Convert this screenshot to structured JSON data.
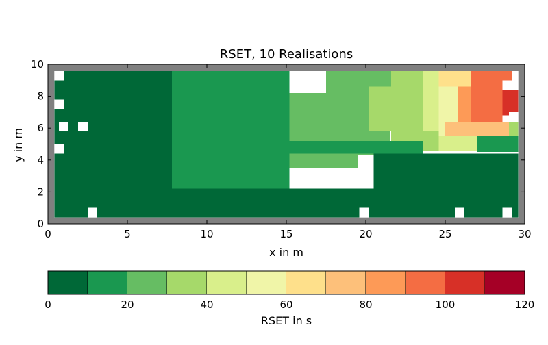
{
  "chart_data": {
    "type": "heatmap",
    "title": "RSET, 10 Realisations",
    "xlabel": "x in m",
    "ylabel": "y in m",
    "xlim": [
      0,
      30
    ],
    "ylim": [
      0,
      10
    ],
    "xticks": [
      "0",
      "5",
      "10",
      "15",
      "20",
      "25",
      "30"
    ],
    "yticks": [
      "0",
      "2",
      "4",
      "6",
      "8",
      "10"
    ],
    "cell_size_m": [
      0.6,
      0.6
    ],
    "grid_origin_m": [
      0.4,
      0.4
    ],
    "walls_color": "#808080",
    "missing_color": "#ffffff",
    "zones": [
      {
        "x": [
          0.4,
          7.8
        ],
        "y": [
          0.4,
          9.6
        ],
        "value": 5
      },
      {
        "x": [
          7.8,
          15.2
        ],
        "y": [
          2.2,
          9.6
        ],
        "value": 15
      },
      {
        "x": [
          15.2,
          19.5
        ],
        "y": [
          3.5,
          8.2
        ],
        "value": 25
      },
      {
        "x": [
          19.5,
          21.5
        ],
        "y": [
          4.3,
          8.7
        ],
        "value": 25
      },
      {
        "x": [
          17.5,
          21.6
        ],
        "y": [
          8.2,
          9.6
        ],
        "value": 25
      },
      {
        "x": [
          21.6,
          23.6
        ],
        "y": [
          4.6,
          9.6
        ],
        "value": 35
      },
      {
        "x": [
          20.2,
          21.6
        ],
        "y": [
          5.8,
          8.6
        ],
        "value": 35
      },
      {
        "x": [
          23.6,
          24.6
        ],
        "y": [
          5.8,
          9.6
        ],
        "value": 45
      },
      {
        "x": [
          24.6,
          25.8
        ],
        "y": [
          5.5,
          9.6
        ],
        "value": 55
      },
      {
        "x": [
          25.0,
          29.2
        ],
        "y": [
          5.5,
          6.4
        ],
        "value": 75
      },
      {
        "x": [
          25.8,
          26.6
        ],
        "y": [
          6.4,
          8.6
        ],
        "value": 85
      },
      {
        "x": [
          26.6,
          28.6
        ],
        "y": [
          6.4,
          9.0
        ],
        "value": 95
      },
      {
        "x": [
          28.6,
          29.6
        ],
        "y": [
          6.8,
          8.4
        ],
        "value": 105
      },
      {
        "x": [
          26.6,
          29.2
        ],
        "y": [
          9.0,
          9.6
        ],
        "value": 95
      },
      {
        "x": [
          24.6,
          26.6
        ],
        "y": [
          8.6,
          9.6
        ],
        "value": 65
      },
      {
        "x": [
          23.6,
          24.6
        ],
        "y": [
          4.6,
          5.8
        ],
        "value": 35
      },
      {
        "x": [
          15.2,
          23.6
        ],
        "y": [
          4.4,
          5.2
        ],
        "value": 15
      },
      {
        "x": [
          24.6,
          27.0
        ],
        "y": [
          4.6,
          5.5
        ],
        "value": 45
      },
      {
        "x": [
          27.0,
          29.6
        ],
        "y": [
          4.5,
          5.5
        ],
        "value": 15
      },
      {
        "x": [
          29.0,
          29.6
        ],
        "y": [
          5.5,
          6.4
        ],
        "value": 35
      },
      {
        "x": [
          20.5,
          29.6
        ],
        "y": [
          0.4,
          4.4
        ],
        "value": 5
      },
      {
        "x": [
          7.8,
          20.5
        ],
        "y": [
          0.4,
          2.2
        ],
        "value": 5
      }
    ],
    "missing_cells": [
      {
        "x": 0.7,
        "y": 5.8
      },
      {
        "x": 1.9,
        "y": 5.8
      },
      {
        "x": 2.5,
        "y": 0.4
      },
      {
        "x": 19.6,
        "y": 0.4
      },
      {
        "x": 25.6,
        "y": 0.4
      },
      {
        "x": 28.6,
        "y": 0.4
      },
      {
        "x": 29.0,
        "y": 6.4
      },
      {
        "x": 0.4,
        "y": 9.0
      },
      {
        "x": 0.4,
        "y": 4.4
      },
      {
        "x": 0.4,
        "y": 7.2
      }
    ],
    "colorbar": {
      "label": "RSET in s",
      "min": 0,
      "max": 120,
      "ticks": [
        "0",
        "20",
        "40",
        "60",
        "80",
        "100",
        "120"
      ],
      "bins": [
        {
          "from": 0,
          "to": 10,
          "color": "#006837"
        },
        {
          "from": 10,
          "to": 20,
          "color": "#1a9850"
        },
        {
          "from": 20,
          "to": 30,
          "color": "#66bd63"
        },
        {
          "from": 30,
          "to": 40,
          "color": "#a6d96a"
        },
        {
          "from": 40,
          "to": 50,
          "color": "#d9ef8b"
        },
        {
          "from": 50,
          "to": 60,
          "color": "#f0f5a8"
        },
        {
          "from": 60,
          "to": 70,
          "color": "#fee08b"
        },
        {
          "from": 70,
          "to": 80,
          "color": "#fdc07a"
        },
        {
          "from": 80,
          "to": 90,
          "color": "#fd9a57"
        },
        {
          "from": 90,
          "to": 100,
          "color": "#f46d43"
        },
        {
          "from": 100,
          "to": 110,
          "color": "#d73027"
        },
        {
          "from": 110,
          "to": 120,
          "color": "#a50026"
        }
      ]
    }
  }
}
